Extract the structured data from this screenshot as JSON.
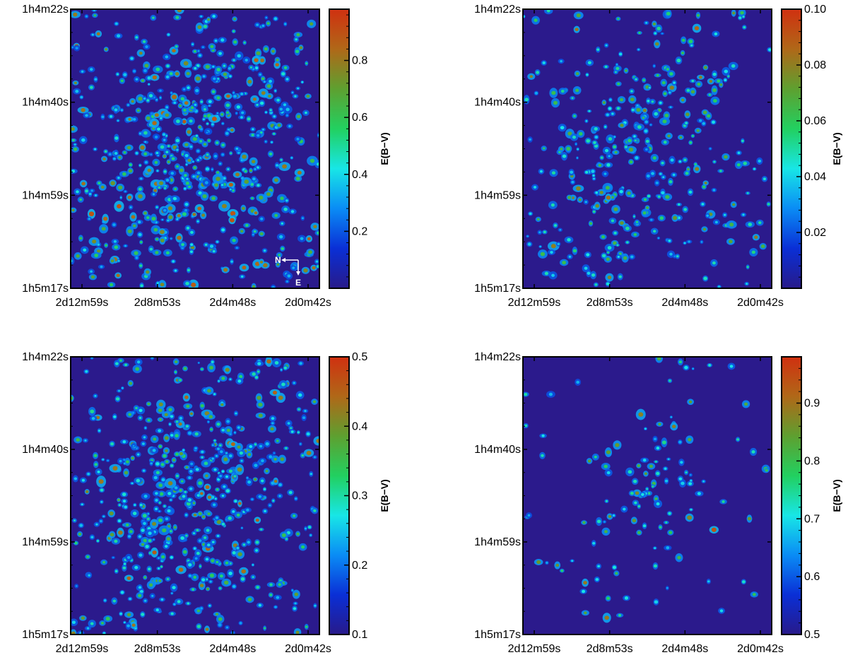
{
  "chart_data": [
    {
      "type": "heatmap",
      "y_ticks": [
        "1h4m22s",
        "1h4m40s",
        "1h4m59s",
        "1h5m17s"
      ],
      "x_ticks": [
        "2d12m59s",
        "2d8m53s",
        "2d4m48s",
        "2d0m42s"
      ],
      "colorbar": {
        "label": "E(B−V)",
        "range": [
          0.0,
          0.98
        ],
        "ticks": [
          "0.2",
          "0.4",
          "0.6",
          "0.8"
        ],
        "tick_values": [
          0.2,
          0.4,
          0.6,
          0.8
        ]
      },
      "compass": {
        "north": "N",
        "east": "E"
      },
      "seed": 11,
      "n_sources": 620,
      "cluster_weight": 0.55,
      "base_intensity": 0.25,
      "spread": 0.35
    },
    {
      "type": "heatmap",
      "y_ticks": [
        "1h4m22s",
        "1h4m40s",
        "1h4m59s",
        "1h5m17s"
      ],
      "x_ticks": [
        "2d12m59s",
        "2d8m53s",
        "2d4m48s",
        "2d0m42s"
      ],
      "colorbar": {
        "label": "E(B−V)",
        "range": [
          0.0,
          0.1
        ],
        "ticks": [
          "0.02",
          "0.04",
          "0.06",
          "0.08",
          "0.10"
        ],
        "tick_values": [
          0.02,
          0.04,
          0.06,
          0.08,
          0.1
        ]
      },
      "seed": 23,
      "n_sources": 360,
      "cluster_weight": 0.7,
      "base_intensity": 0.45,
      "spread": 0.4
    },
    {
      "type": "heatmap",
      "y_ticks": [
        "1h4m22s",
        "1h4m40s",
        "1h4m59s",
        "1h5m17s"
      ],
      "x_ticks": [
        "2d12m59s",
        "2d8m53s",
        "2d4m48s",
        "2d0m42s"
      ],
      "colorbar": {
        "label": "E(B−V)",
        "range": [
          0.1,
          0.5
        ],
        "ticks": [
          "0.1",
          "0.2",
          "0.3",
          "0.4",
          "0.5"
        ],
        "tick_values": [
          0.1,
          0.2,
          0.3,
          0.4,
          0.5
        ]
      },
      "seed": 37,
      "n_sources": 560,
      "cluster_weight": 0.55,
      "base_intensity": 0.3,
      "spread": 0.35
    },
    {
      "type": "heatmap",
      "y_ticks": [
        "1h4m22s",
        "1h4m40s",
        "1h4m59s",
        "1h5m17s"
      ],
      "x_ticks": [
        "2d12m59s",
        "2d8m53s",
        "2d4m48s",
        "2d0m42s"
      ],
      "colorbar": {
        "label": "E(B−V)",
        "range": [
          0.5,
          0.98
        ],
        "ticks": [
          "0.5",
          "0.6",
          "0.7",
          "0.8",
          "0.9"
        ],
        "tick_values": [
          0.5,
          0.6,
          0.7,
          0.8,
          0.9
        ]
      },
      "seed": 53,
      "n_sources": 120,
      "cluster_weight": 0.4,
      "base_intensity": 0.3,
      "spread": 0.15
    }
  ],
  "colors": {
    "background": "#2b1a8c",
    "colormap": [
      "#281a8a",
      "#0a2fd6",
      "#0a8cf5",
      "#18e6e6",
      "#22d060",
      "#5ea030",
      "#b06818",
      "#d03010"
    ]
  }
}
